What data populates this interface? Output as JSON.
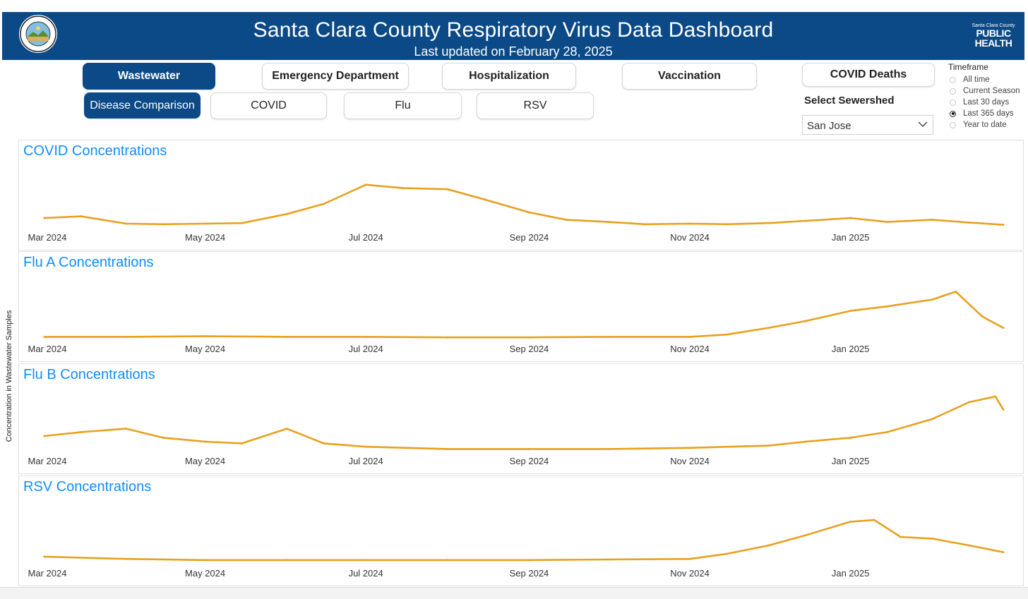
{
  "header": {
    "title": "Santa Clara County Respiratory Virus Data Dashboard",
    "subtitle": "Last updated on February 28, 2025",
    "logo_small": "Santa Clara County",
    "logo_line1": "PUBLIC",
    "logo_line2": "HEALTH",
    "brand_color": "#0b4a86"
  },
  "nav": {
    "tabs": [
      {
        "label": "Wastewater",
        "active": true
      },
      {
        "label": "Emergency Department",
        "active": false
      },
      {
        "label": "Hospitalization",
        "active": false
      },
      {
        "label": "Vaccination",
        "active": false
      },
      {
        "label": "COVID Deaths",
        "active": false
      }
    ],
    "subtabs": [
      {
        "label": "Disease Comparison",
        "active": true
      },
      {
        "label": "COVID",
        "active": false
      },
      {
        "label": "Flu",
        "active": false
      },
      {
        "label": "RSV",
        "active": false
      }
    ]
  },
  "sewershed": {
    "label": "Select Sewershed",
    "value": "San Jose"
  },
  "timeframe": {
    "title": "Timeframe",
    "options": [
      "All time",
      "Current Season",
      "Last 30 days",
      "Last 365 days",
      "Year to date"
    ],
    "selected": "Last 365 days"
  },
  "y_axis_label": "Concentration in Wastewater Samples",
  "line_color": "#e8a01e",
  "title_color": "#118dff",
  "chart_data": [
    {
      "type": "line",
      "title": "COVID Concentrations",
      "x_ticks": [
        "Mar 2024",
        "May 2024",
        "Jul 2024",
        "Sep 2024",
        "Nov 2024",
        "Jan 2025"
      ],
      "x": [
        "2024-03-01",
        "2024-03-15",
        "2024-04-01",
        "2024-04-15",
        "2024-05-01",
        "2024-05-15",
        "2024-06-01",
        "2024-06-15",
        "2024-07-01",
        "2024-07-15",
        "2024-08-01",
        "2024-08-15",
        "2024-09-01",
        "2024-09-15",
        "2024-10-01",
        "2024-10-15",
        "2024-11-01",
        "2024-11-15",
        "2024-12-01",
        "2024-12-15",
        "2025-01-01",
        "2025-01-15",
        "2025-02-01",
        "2025-02-15",
        "2025-02-28"
      ],
      "values": [
        0.15,
        0.18,
        0.05,
        0.04,
        0.05,
        0.06,
        0.22,
        0.4,
        0.74,
        0.68,
        0.66,
        0.48,
        0.25,
        0.12,
        0.08,
        0.04,
        0.05,
        0.04,
        0.06,
        0.1,
        0.15,
        0.08,
        0.12,
        0.07,
        0.03
      ]
    },
    {
      "type": "line",
      "title": "Flu A Concentrations",
      "x_ticks": [
        "Mar 2024",
        "May 2024",
        "Jul 2024",
        "Sep 2024",
        "Nov 2024",
        "Jan 2025"
      ],
      "x": [
        "2024-03-01",
        "2024-04-01",
        "2024-05-01",
        "2024-06-01",
        "2024-07-01",
        "2024-08-01",
        "2024-09-01",
        "2024-10-01",
        "2024-11-01",
        "2024-11-15",
        "2024-12-01",
        "2024-12-15",
        "2025-01-01",
        "2025-01-15",
        "2025-02-01",
        "2025-02-10",
        "2025-02-20",
        "2025-02-28"
      ],
      "values": [
        0.02,
        0.02,
        0.03,
        0.02,
        0.02,
        0.01,
        0.01,
        0.02,
        0.02,
        0.06,
        0.18,
        0.3,
        0.48,
        0.56,
        0.68,
        0.82,
        0.38,
        0.18
      ]
    },
    {
      "type": "line",
      "title": "Flu B Concentrations",
      "x_ticks": [
        "Mar 2024",
        "May 2024",
        "Jul 2024",
        "Sep 2024",
        "Nov 2024",
        "Jan 2025"
      ],
      "x": [
        "2024-03-01",
        "2024-03-15",
        "2024-04-01",
        "2024-04-15",
        "2024-05-01",
        "2024-05-15",
        "2024-06-01",
        "2024-06-15",
        "2024-07-01",
        "2024-08-01",
        "2024-09-01",
        "2024-10-01",
        "2024-11-01",
        "2024-12-01",
        "2024-12-15",
        "2025-01-01",
        "2025-01-15",
        "2025-02-01",
        "2025-02-15",
        "2025-02-25",
        "2025-02-28"
      ],
      "values": [
        0.25,
        0.32,
        0.38,
        0.22,
        0.15,
        0.12,
        0.38,
        0.12,
        0.06,
        0.02,
        0.02,
        0.02,
        0.04,
        0.08,
        0.15,
        0.22,
        0.32,
        0.55,
        0.85,
        0.95,
        0.72
      ]
    },
    {
      "type": "line",
      "title": "RSV Concentrations",
      "x_ticks": [
        "Mar 2024",
        "May 2024",
        "Jul 2024",
        "Sep 2024",
        "Nov 2024",
        "Jan 2025"
      ],
      "x": [
        "2024-03-01",
        "2024-04-01",
        "2024-05-01",
        "2024-06-01",
        "2024-07-01",
        "2024-08-01",
        "2024-09-01",
        "2024-10-01",
        "2024-11-01",
        "2024-11-15",
        "2024-12-01",
        "2024-12-15",
        "2025-01-01",
        "2025-01-10",
        "2025-01-20",
        "2025-02-01",
        "2025-02-15",
        "2025-02-28"
      ],
      "values": [
        0.1,
        0.06,
        0.04,
        0.04,
        0.04,
        0.04,
        0.04,
        0.05,
        0.06,
        0.15,
        0.3,
        0.48,
        0.72,
        0.75,
        0.45,
        0.42,
        0.3,
        0.18
      ]
    }
  ]
}
